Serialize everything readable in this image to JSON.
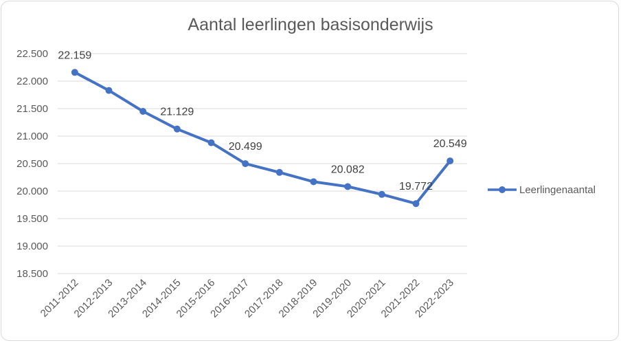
{
  "chart_data": {
    "type": "line",
    "title": "Aantal leerlingen basisonderwijs",
    "xlabel": "",
    "ylabel": "",
    "categories": [
      "2011-2012",
      "2012-2013",
      "2013-2014",
      "2014-2015",
      "2015-2016",
      "2016-2017",
      "2017-2018",
      "2018-2019",
      "2019-2020",
      "2020-2021",
      "2021-2022",
      "2022-2023"
    ],
    "series": [
      {
        "name": "Leerlingenaantal",
        "color": "#4472c4",
        "values": [
          22159,
          21830,
          21450,
          21129,
          20880,
          20499,
          20340,
          20170,
          20082,
          19940,
          19772,
          20549
        ]
      }
    ],
    "data_labels": [
      {
        "index": 0,
        "text": "22.159"
      },
      {
        "index": 3,
        "text": "21.129"
      },
      {
        "index": 5,
        "text": "20.499"
      },
      {
        "index": 8,
        "text": "20.082"
      },
      {
        "index": 10,
        "text": "19.772"
      },
      {
        "index": 11,
        "text": "20.549"
      }
    ],
    "ylim": [
      18500,
      22500
    ],
    "yticks": [
      {
        "value": 22500,
        "label": "22.500"
      },
      {
        "value": 22000,
        "label": "22.000"
      },
      {
        "value": 21500,
        "label": "21.500"
      },
      {
        "value": 21000,
        "label": "21.000"
      },
      {
        "value": 20500,
        "label": "20.500"
      },
      {
        "value": 20000,
        "label": "20.000"
      },
      {
        "value": 19500,
        "label": "19.500"
      },
      {
        "value": 19000,
        "label": "19.000"
      },
      {
        "value": 18500,
        "label": "18.500"
      }
    ],
    "grid": true,
    "legend_position": "right"
  }
}
